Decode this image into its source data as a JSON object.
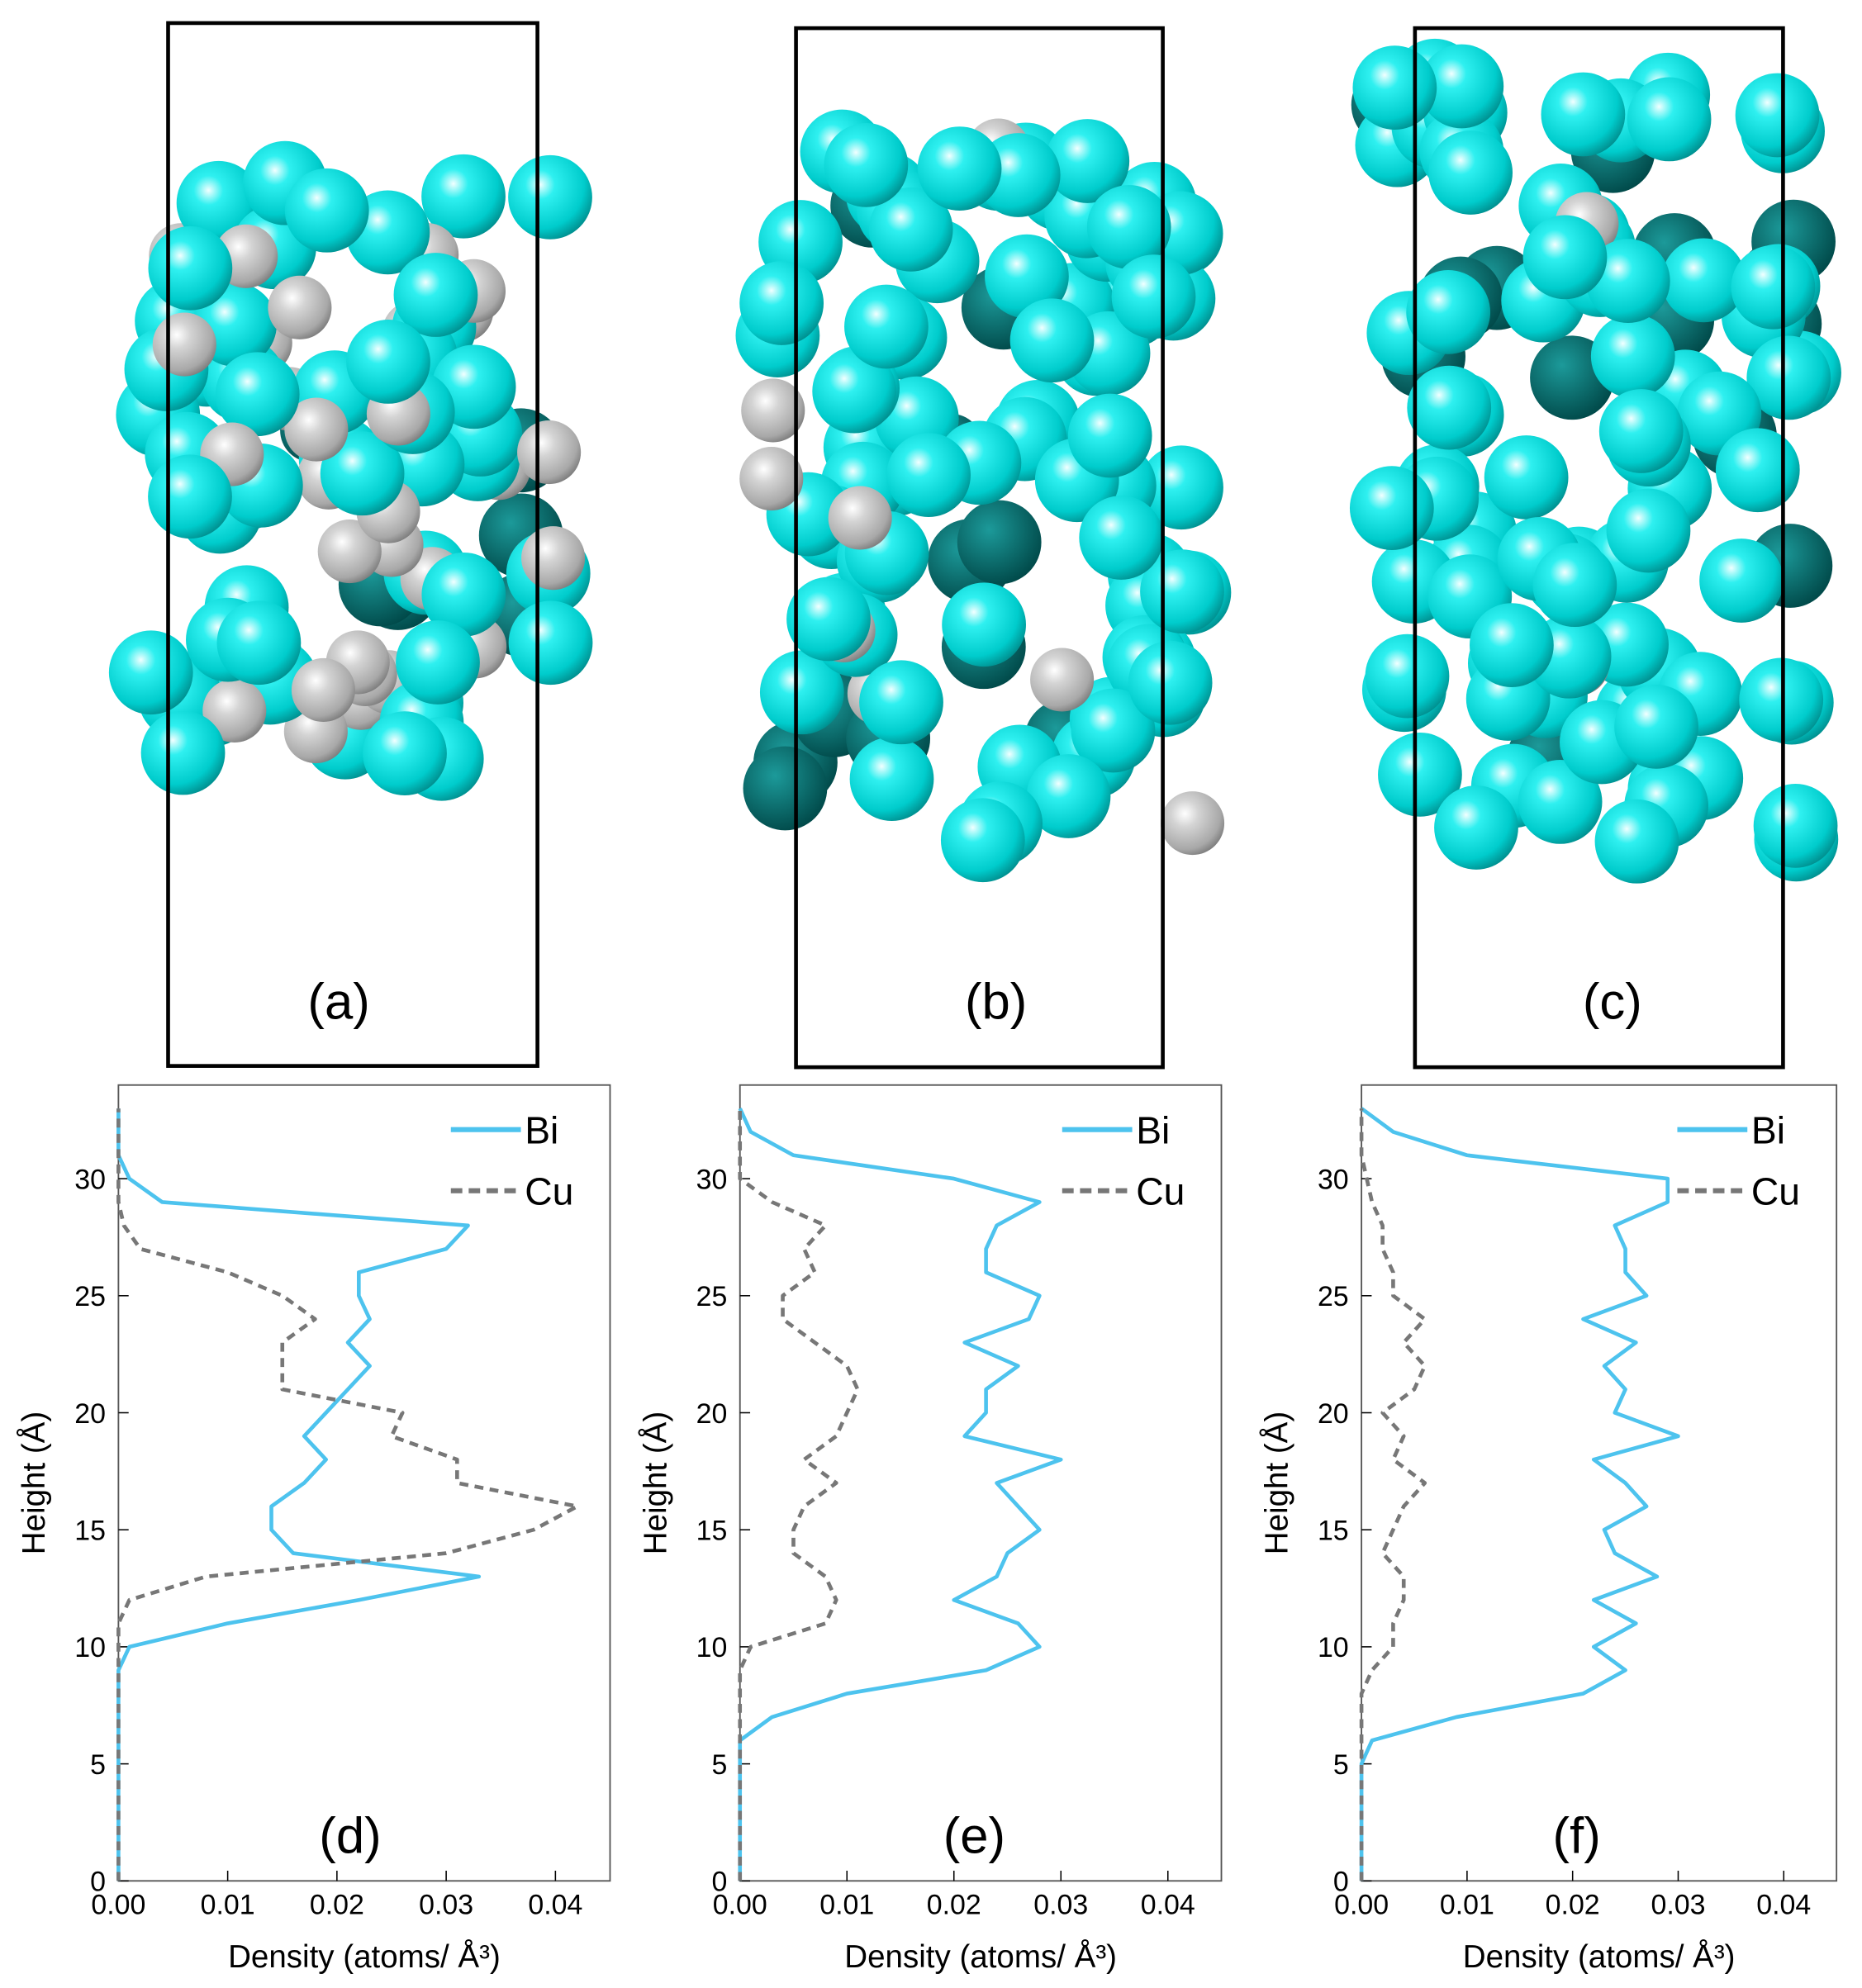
{
  "structure_panels": [
    {
      "label": "(a)"
    },
    {
      "label": "(b)"
    },
    {
      "label": "(c)"
    }
  ],
  "chart_data": [
    {
      "type": "line",
      "annotation": "(d)",
      "xlabel": "Density  (atoms/  Å³)",
      "ylabel": "Height  (Å)",
      "legend": "upper right",
      "xlim": [
        0,
        0.045
      ],
      "xticks": [
        {
          "value": 0,
          "label": "0.00"
        },
        0.01,
        0.02,
        0.03,
        0.04
      ],
      "ylim": [
        0,
        34
      ],
      "yticks": [
        0,
        5,
        10,
        15,
        20,
        25,
        30
      ],
      "y": [
        0,
        1,
        2,
        3,
        4,
        5,
        6,
        7,
        8,
        9,
        10,
        11,
        12,
        13,
        14,
        15,
        16,
        17,
        18,
        19,
        20,
        21,
        22,
        23,
        24,
        25,
        26,
        27,
        28,
        29,
        30,
        31,
        32,
        33
      ],
      "series": [
        {
          "name": "Bi",
          "color": "#4dc3ee",
          "dash": "solid",
          "values": [
            0,
            0,
            0,
            0,
            0,
            0,
            0,
            0,
            0,
            0,
            0.001,
            0.01,
            0.022,
            0.033,
            0.016,
            0.014,
            0.014,
            0.017,
            0.019,
            0.017,
            0.019,
            0.021,
            0.023,
            0.021,
            0.023,
            0.022,
            0.022,
            0.03,
            0.032,
            0.004,
            0.001,
            0,
            0,
            0
          ]
        },
        {
          "name": "Cu",
          "color": "#777777",
          "dash": "dashed",
          "values": [
            0,
            0,
            0,
            0,
            0,
            0,
            0,
            0,
            0,
            0,
            0,
            0,
            0.001,
            0.008,
            0.03,
            0.038,
            0.042,
            0.031,
            0.031,
            0.025,
            0.026,
            0.015,
            0.015,
            0.015,
            0.018,
            0.015,
            0.01,
            0.002,
            0.0005,
            0,
            0,
            0,
            0,
            0
          ]
        }
      ]
    },
    {
      "type": "line",
      "annotation": "(e)",
      "xlabel": "Density  (atoms/  Å³)",
      "ylabel": "Height  (Å)",
      "legend": "upper right",
      "xlim": [
        0,
        0.045
      ],
      "xticks": [
        {
          "value": 0,
          "label": "0.00"
        },
        0.01,
        0.02,
        0.03,
        0.04
      ],
      "ylim": [
        0,
        34
      ],
      "yticks": [
        0,
        5,
        10,
        15,
        20,
        25,
        30
      ],
      "y": [
        0,
        1,
        2,
        3,
        4,
        5,
        6,
        7,
        8,
        9,
        10,
        11,
        12,
        13,
        14,
        15,
        16,
        17,
        18,
        19,
        20,
        21,
        22,
        23,
        24,
        25,
        26,
        27,
        28,
        29,
        30,
        31,
        32,
        33
      ],
      "series": [
        {
          "name": "Bi",
          "color": "#4dc3ee",
          "dash": "solid",
          "values": [
            0,
            0,
            0,
            0,
            0,
            0,
            0,
            0.003,
            0.01,
            0.023,
            0.028,
            0.026,
            0.02,
            0.024,
            0.025,
            0.028,
            0.026,
            0.024,
            0.03,
            0.021,
            0.023,
            0.023,
            0.026,
            0.021,
            0.027,
            0.028,
            0.023,
            0.023,
            0.024,
            0.028,
            0.02,
            0.005,
            0.001,
            0
          ]
        },
        {
          "name": "Cu",
          "color": "#777777",
          "dash": "dashed",
          "values": [
            0,
            0,
            0,
            0,
            0,
            0,
            0,
            0,
            0,
            0,
            0.001,
            0.008,
            0.009,
            0.008,
            0.005,
            0.005,
            0.006,
            0.009,
            0.006,
            0.009,
            0.01,
            0.011,
            0.01,
            0.007,
            0.004,
            0.004,
            0.007,
            0.006,
            0.008,
            0.003,
            0,
            0,
            0,
            0
          ]
        }
      ]
    },
    {
      "type": "line",
      "annotation": "(f)",
      "xlabel": "Density  (atoms/  Å³)",
      "ylabel": "Height  (Å)",
      "legend": "upper right",
      "xlim": [
        0,
        0.045
      ],
      "xticks": [
        {
          "value": 0,
          "label": "0.00"
        },
        0.01,
        0.02,
        0.03,
        0.04
      ],
      "ylim": [
        0,
        34
      ],
      "yticks": [
        0,
        5,
        10,
        15,
        20,
        25,
        30
      ],
      "y": [
        0,
        1,
        2,
        3,
        4,
        5,
        6,
        7,
        8,
        9,
        10,
        11,
        12,
        13,
        14,
        15,
        16,
        17,
        18,
        19,
        20,
        21,
        22,
        23,
        24,
        25,
        26,
        27,
        28,
        29,
        30,
        31,
        32,
        33
      ],
      "series": [
        {
          "name": "Bi",
          "color": "#4dc3ee",
          "dash": "solid",
          "values": [
            0,
            0,
            0,
            0,
            0,
            0,
            0.001,
            0.009,
            0.021,
            0.025,
            0.022,
            0.026,
            0.022,
            0.028,
            0.024,
            0.023,
            0.027,
            0.025,
            0.022,
            0.03,
            0.024,
            0.025,
            0.023,
            0.026,
            0.021,
            0.027,
            0.025,
            0.025,
            0.024,
            0.029,
            0.029,
            0.01,
            0.003,
            0
          ]
        },
        {
          "name": "Cu",
          "color": "#777777",
          "dash": "dashed",
          "values": [
            0,
            0,
            0,
            0,
            0,
            0,
            0,
            0,
            0,
            0.001,
            0.003,
            0.003,
            0.004,
            0.004,
            0.002,
            0.003,
            0.004,
            0.006,
            0.003,
            0.004,
            0.002,
            0.005,
            0.006,
            0.004,
            0.006,
            0.003,
            0.003,
            0.002,
            0.002,
            0.001,
            0.0005,
            0,
            0,
            0
          ]
        }
      ]
    }
  ]
}
